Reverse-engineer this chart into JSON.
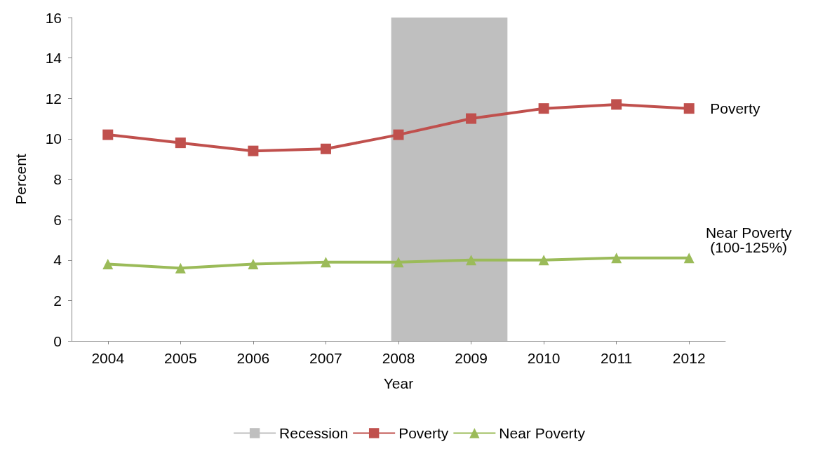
{
  "chart_data": {
    "type": "line",
    "xlabel": "Year",
    "ylabel": "Percent",
    "x": [
      2004,
      2005,
      2006,
      2007,
      2008,
      2009,
      2010,
      2011,
      2012
    ],
    "xlim": [
      2003.5,
      2012.5
    ],
    "xticks": [
      2004,
      2005,
      2006,
      2007,
      2008,
      2009,
      2010,
      2011,
      2012
    ],
    "ylim": [
      0,
      16
    ],
    "yticks": [
      0,
      2,
      4,
      6,
      8,
      10,
      12,
      14,
      16
    ],
    "grid": false,
    "legend": "bottom",
    "bands": [
      {
        "axis": "x",
        "from": 2007.9,
        "to": 2009.5,
        "label": "Recession",
        "color": "#bfbfbf"
      }
    ],
    "series": [
      {
        "name": "Poverty",
        "color": "#c0504d",
        "marker": "square",
        "values": [
          10.2,
          9.8,
          9.4,
          9.5,
          10.2,
          11.0,
          11.5,
          11.7,
          11.5
        ]
      },
      {
        "name": "Near Poverty",
        "color": "#9bbb59",
        "marker": "triangle",
        "values": [
          3.8,
          3.6,
          3.8,
          3.9,
          3.9,
          4.0,
          4.0,
          4.1,
          4.1
        ]
      }
    ],
    "annotations": [
      {
        "text": "Poverty",
        "x": 2012,
        "y": 11.5
      },
      {
        "text": "Near Poverty\n(100-125%)",
        "x": 2012,
        "y": 4.1
      }
    ]
  }
}
